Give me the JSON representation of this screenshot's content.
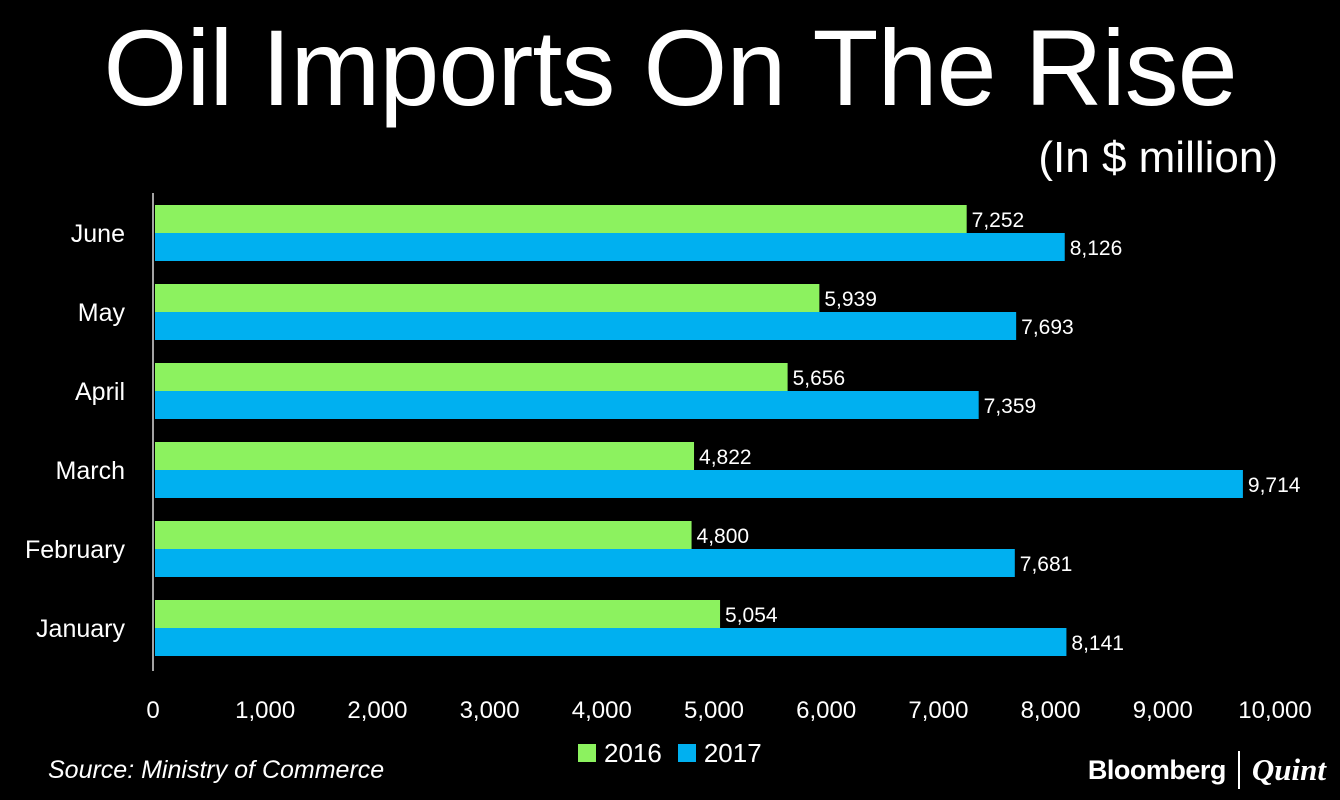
{
  "header": {
    "title": "Oil Imports On The Rise",
    "subtitle": "(In $ million)"
  },
  "footer": {
    "source": "Source: Ministry of Commerce",
    "brand_main": "Bloomberg",
    "brand_sub": "Quint"
  },
  "chart_data": {
    "type": "bar",
    "orientation": "horizontal",
    "categories": [
      "June",
      "May",
      "April",
      "March",
      "February",
      "January"
    ],
    "series": [
      {
        "name": "2016",
        "color": "#8cf25f",
        "values": [
          7252,
          5939,
          5656,
          4822,
          4800,
          5054
        ],
        "labels": [
          "7,252",
          "5,939",
          "5,656",
          "4,822",
          "4,800",
          "5,054"
        ]
      },
      {
        "name": "2017",
        "color": "#00b0f0",
        "values": [
          8126,
          7693,
          7359,
          9714,
          7681,
          8141
        ],
        "labels": [
          "8,126",
          "7,693",
          "7,359",
          "9,714",
          "7,681",
          "8,141"
        ]
      }
    ],
    "xlim": [
      0,
      10000
    ],
    "x_ticks": [
      0,
      1000,
      2000,
      3000,
      4000,
      5000,
      6000,
      7000,
      8000,
      9000,
      10000
    ],
    "x_tick_labels": [
      "0",
      "1,000",
      "2,000",
      "3,000",
      "4,000",
      "5,000",
      "6,000",
      "7,000",
      "8,000",
      "9,000",
      "10,000"
    ],
    "grid": false,
    "legend_position": "bottom"
  }
}
